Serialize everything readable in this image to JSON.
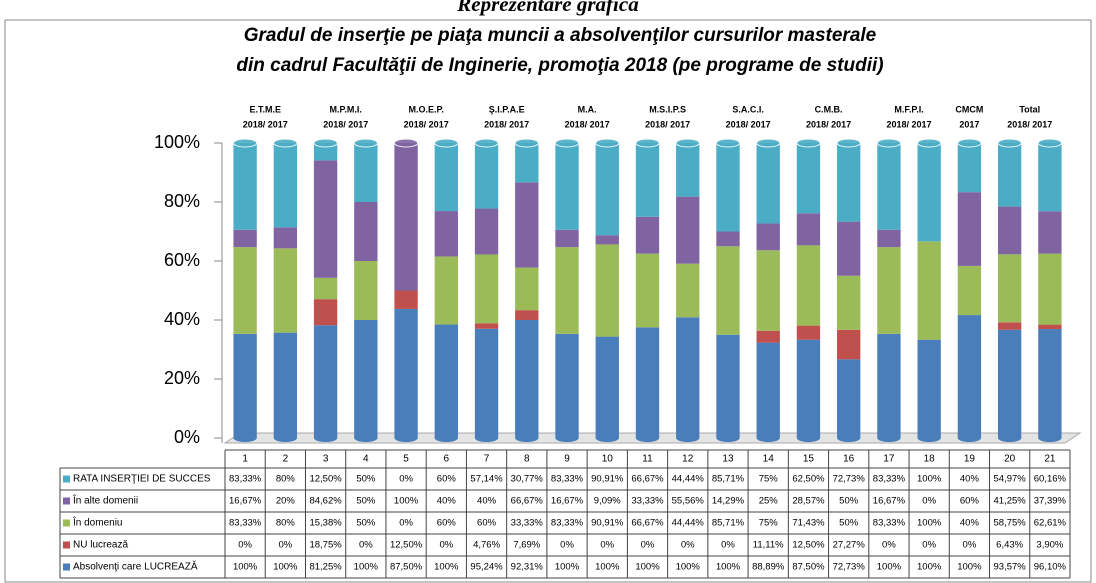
{
  "page_title": "Reprezentare grafică",
  "chart_data": {
    "type": "stacked_bar_100",
    "title": [
      "Gradul de inserţie pe piaţa muncii a absolvenţilor cursurilor masterale",
      "din cadrul Facultăţii de Inginerie, promoţia 2018 (pe programe de studii)"
    ],
    "groups": [
      {
        "label": "E.T.M.E",
        "sublabel": "2018/ 2017"
      },
      {
        "label": "M.P.M.I.",
        "sublabel": "2018/ 2017"
      },
      {
        "label": "M.O.E.P.",
        "sublabel": "2018/ 2017"
      },
      {
        "label": "Ş.I.P.A.E",
        "sublabel": "2018/ 2017"
      },
      {
        "label": "M.A.",
        "sublabel": "2018/ 2017"
      },
      {
        "label": "M.S.I.P.S",
        "sublabel": "2018/ 2017"
      },
      {
        "label": "S.A.C.I.",
        "sublabel": "2018/ 2017"
      },
      {
        "label": "C.M.B.",
        "sublabel": "2018/ 2017"
      },
      {
        "label": "M.F.P.I.",
        "sublabel": "2018/ 2017"
      },
      {
        "label": "CMCM",
        "sublabel": "2017"
      },
      {
        "label": "Total",
        "sublabel": "2018/ 2017"
      }
    ],
    "categories": [
      "1",
      "2",
      "3",
      "4",
      "5",
      "6",
      "7",
      "8",
      "9",
      "10",
      "11",
      "12",
      "13",
      "14",
      "15",
      "16",
      "17",
      "18",
      "19",
      "20",
      "21"
    ],
    "ylim": [
      0,
      100
    ],
    "yticks": [
      {
        "value": 0,
        "label": "0%"
      },
      {
        "value": 20,
        "label": "20%"
      },
      {
        "value": 40,
        "label": "40%"
      },
      {
        "value": 60,
        "label": "60%"
      },
      {
        "value": 80,
        "label": "80%"
      },
      {
        "value": 100,
        "label": "100%"
      }
    ],
    "series": [
      {
        "name": "RATA INSERŢIEI DE  SUCCES",
        "color": "#4bacc6",
        "values": [
          83.33,
          80,
          12.5,
          50,
          0,
          60,
          57.14,
          30.77,
          83.33,
          90.91,
          66.67,
          44.44,
          85.71,
          75,
          62.5,
          72.73,
          83.33,
          100,
          40,
          54.97,
          60.16
        ],
        "value_labels": [
          "83,33%",
          "80%",
          "12,50%",
          "50%",
          "0%",
          "60%",
          "57,14%",
          "30,77%",
          "83,33%",
          "90,91%",
          "66,67%",
          "44,44%",
          "85,71%",
          "75%",
          "62,50%",
          "72,73%",
          "83,33%",
          "100%",
          "40%",
          "54,97%",
          "60,16%"
        ]
      },
      {
        "name": "În alte domenii",
        "color": "#8064a2",
        "values": [
          16.67,
          20,
          84.62,
          50,
          100,
          40,
          40,
          66.67,
          16.67,
          9.09,
          33.33,
          55.56,
          14.29,
          25,
          28.57,
          50,
          16.67,
          0,
          60,
          41.25,
          37.39
        ],
        "value_labels": [
          "16,67%",
          "20%",
          "84,62%",
          "50%",
          "100%",
          "40%",
          "40%",
          "66,67%",
          "16,67%",
          "9,09%",
          "33,33%",
          "55,56%",
          "14,29%",
          "25%",
          "28,57%",
          "50%",
          "16,67%",
          "0%",
          "60%",
          "41,25%",
          "37,39%"
        ]
      },
      {
        "name": "În domeniu",
        "color": "#9bbb59",
        "values": [
          83.33,
          80,
          15.38,
          50,
          0,
          60,
          60,
          33.33,
          83.33,
          90.91,
          66.67,
          44.44,
          85.71,
          75,
          71.43,
          50,
          83.33,
          100,
          40,
          58.75,
          62.61
        ],
        "value_labels": [
          "83,33%",
          "80%",
          "15,38%",
          "50%",
          "0%",
          "60%",
          "60%",
          "33,33%",
          "83,33%",
          "90,91%",
          "66,67%",
          "44,44%",
          "85,71%",
          "75%",
          "71,43%",
          "50%",
          "83,33%",
          "100%",
          "40%",
          "58,75%",
          "62,61%"
        ]
      },
      {
        "name": "NU lucrează",
        "color": "#c0504d",
        "values": [
          0,
          0,
          18.75,
          0,
          12.5,
          0,
          4.76,
          7.69,
          0,
          0,
          0,
          0,
          0,
          11.11,
          12.5,
          27.27,
          0,
          0,
          0,
          6.43,
          3.9
        ],
        "value_labels": [
          "0%",
          "0%",
          "18,75%",
          "0%",
          "12,50%",
          "0%",
          "4,76%",
          "7,69%",
          "0%",
          "0%",
          "0%",
          "0%",
          "0%",
          "11,11%",
          "12,50%",
          "27,27%",
          "0%",
          "0%",
          "0%",
          "6,43%",
          "3,90%"
        ]
      },
      {
        "name": "Absolvenţi care LUCREAZĂ",
        "color": "#4a7ebb",
        "values": [
          100,
          100,
          81.25,
          100,
          87.5,
          100,
          95.24,
          92.31,
          100,
          100,
          100,
          100,
          100,
          88.89,
          87.5,
          72.73,
          100,
          100,
          100,
          93.57,
          96.1
        ],
        "value_labels": [
          "100%",
          "100%",
          "81,25%",
          "100%",
          "87,50%",
          "100%",
          "95,24%",
          "92,31%",
          "100%",
          "100%",
          "100%",
          "100%",
          "100%",
          "88,89%",
          "87,50%",
          "72,73%",
          "100%",
          "100%",
          "100%",
          "93,57%",
          "96,10%"
        ]
      }
    ]
  }
}
